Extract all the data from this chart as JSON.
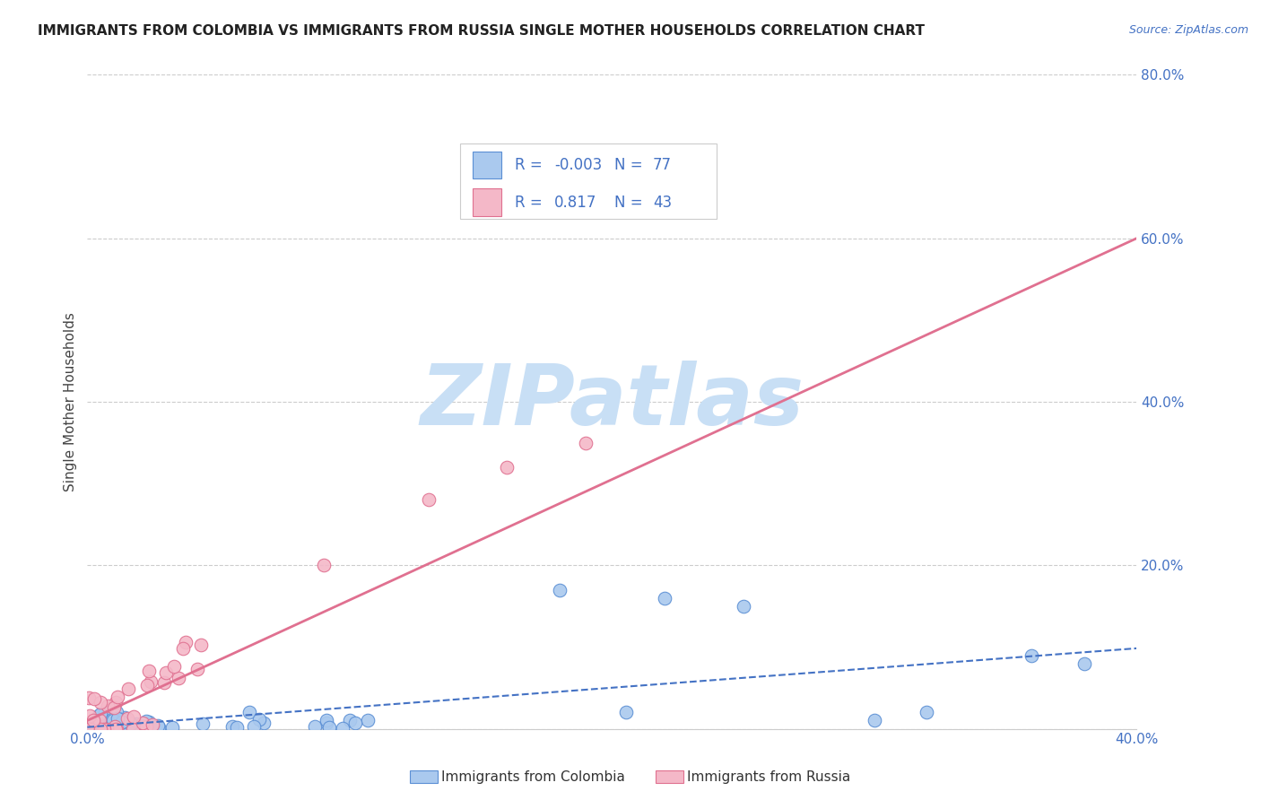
{
  "title": "IMMIGRANTS FROM COLOMBIA VS IMMIGRANTS FROM RUSSIA SINGLE MOTHER HOUSEHOLDS CORRELATION CHART",
  "source_text": "Source: ZipAtlas.com",
  "ylabel": "Single Mother Households",
  "xlim": [
    0.0,
    0.4
  ],
  "ylim": [
    0.0,
    0.8
  ],
  "xticks": [
    0.0,
    0.05,
    0.1,
    0.15,
    0.2,
    0.25,
    0.3,
    0.35,
    0.4
  ],
  "yticks": [
    0.0,
    0.2,
    0.4,
    0.6,
    0.8
  ],
  "colombia_R": -0.003,
  "colombia_N": 77,
  "russia_R": 0.817,
  "russia_N": 43,
  "colombia_color": "#aac9ee",
  "russia_color": "#f4b8c8",
  "colombia_edge_color": "#5b8fd4",
  "russia_edge_color": "#e07090",
  "colombia_line_color": "#4472c4",
  "russia_line_color": "#e07090",
  "title_fontsize": 11,
  "watermark_text": "ZIPatlas",
  "watermark_color": "#c8dff5",
  "background_color": "#ffffff",
  "grid_color": "#cccccc",
  "tick_color": "#4472c4",
  "legend_text_color": "#4472c4",
  "legend_r_label_color": "#333333",
  "source_color": "#4472c4",
  "bottom_legend_text_color": "#333333"
}
